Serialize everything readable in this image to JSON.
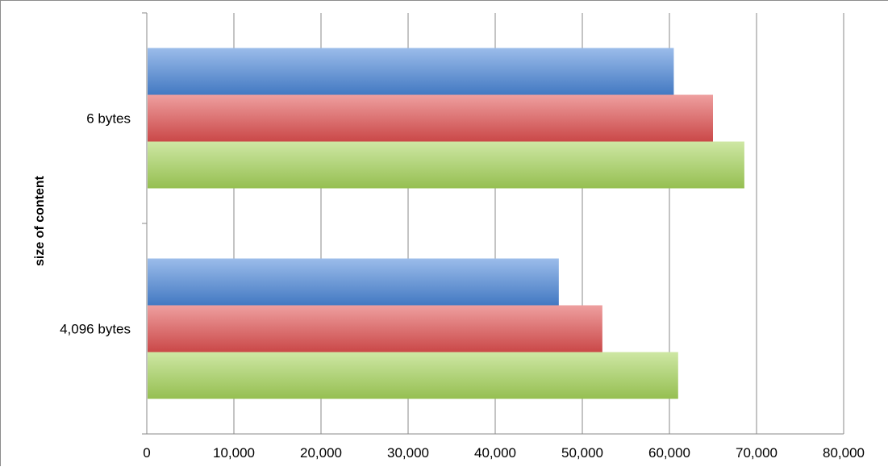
{
  "chart_data": {
    "type": "bar",
    "orientation": "horizontal",
    "title": "",
    "xlabel": "",
    "ylabel": "size of content",
    "categories": [
      "6 bytes",
      "4,096 bytes"
    ],
    "series": [
      {
        "values": [
          60500,
          47300
        ],
        "color": "#4a86d8"
      },
      {
        "values": [
          65000,
          52300
        ],
        "color": "#e05050"
      },
      {
        "values": [
          68600,
          61000
        ],
        "color": "#a6d45a"
      }
    ],
    "xlim": [
      0,
      80000
    ],
    "xticks": [
      0,
      10000,
      20000,
      30000,
      40000,
      50000,
      60000,
      70000,
      80000
    ],
    "xtick_labels": [
      "0",
      "10,000",
      "20,000",
      "30,000",
      "40,000",
      "50,000",
      "60,000",
      "70,000",
      "80,000"
    ],
    "grid": true,
    "legend": "none"
  }
}
